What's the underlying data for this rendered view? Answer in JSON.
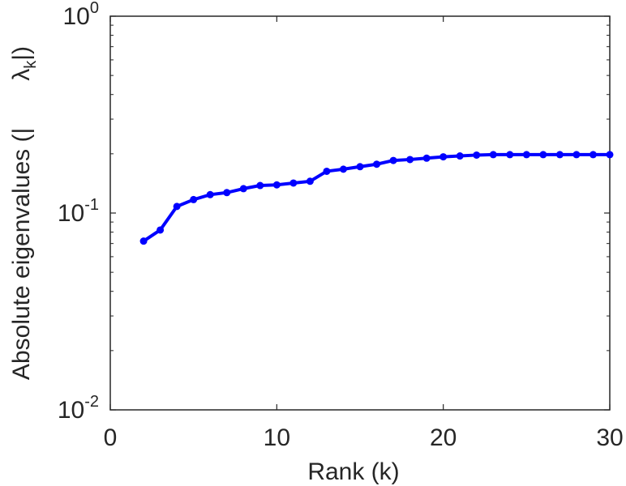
{
  "chart_data": {
    "type": "line",
    "title": "",
    "xlabel": "Rank (k)",
    "ylabel": {
      "prefix": "Absolute eigenvalues (|",
      "symbol": "λ",
      "subscript": "k",
      "suffix": "|)"
    },
    "xlim": [
      0,
      30
    ],
    "ylim": [
      0.01,
      1
    ],
    "yscale": "log",
    "grid": false,
    "x_ticks": [
      {
        "value": 0,
        "label": "0"
      },
      {
        "value": 10,
        "label": "10"
      },
      {
        "value": 20,
        "label": "20"
      },
      {
        "value": 30,
        "label": "30"
      }
    ],
    "y_ticks": [
      {
        "value": 1,
        "base": "10",
        "exp": "0"
      },
      {
        "value": 0.1,
        "base": "10",
        "exp": "-1"
      },
      {
        "value": 0.01,
        "base": "10",
        "exp": "-2"
      }
    ],
    "series": [
      {
        "color": "#0000ff",
        "x": [
          2,
          3,
          4,
          5,
          6,
          7,
          8,
          9,
          10,
          11,
          12,
          13,
          14,
          15,
          16,
          17,
          18,
          19,
          20,
          21,
          22,
          23,
          24,
          25,
          26,
          27,
          28,
          29,
          30
        ],
        "y": [
          0.072,
          0.082,
          0.108,
          0.117,
          0.124,
          0.127,
          0.133,
          0.138,
          0.139,
          0.142,
          0.145,
          0.163,
          0.167,
          0.172,
          0.177,
          0.185,
          0.187,
          0.19,
          0.193,
          0.195,
          0.197,
          0.198,
          0.198,
          0.198,
          0.198,
          0.198,
          0.198,
          0.198,
          0.198
        ]
      }
    ]
  }
}
